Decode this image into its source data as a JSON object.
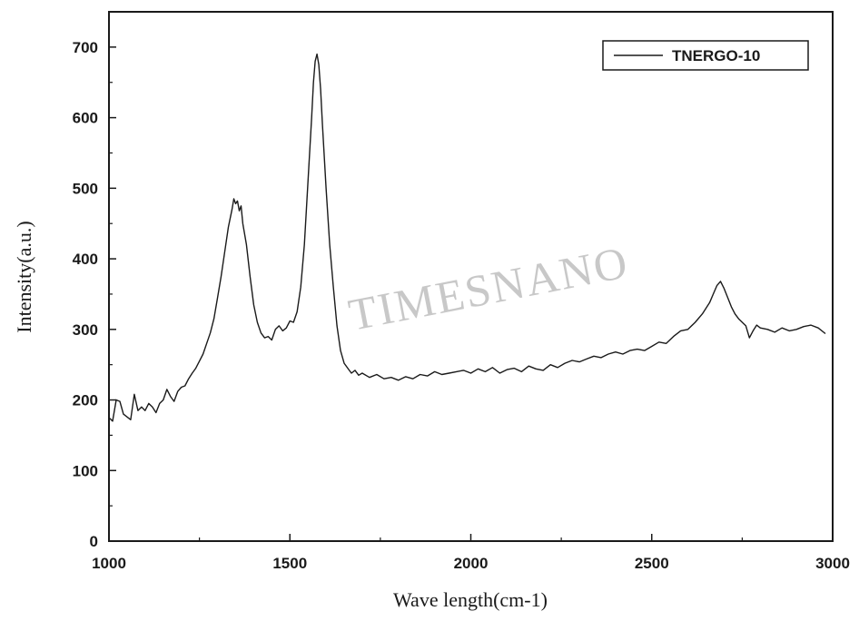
{
  "chart_data": {
    "type": "line",
    "title": "",
    "xlabel": "Wave length(cm-1)",
    "ylabel": "Intensity(a.u.)",
    "xlim": [
      1000,
      3000
    ],
    "ylim": [
      0,
      750
    ],
    "x_ticks": [
      1000,
      1500,
      2000,
      2500,
      3000
    ],
    "y_ticks": [
      0,
      100,
      200,
      300,
      400,
      500,
      600,
      700
    ],
    "grid": false,
    "legend": {
      "position": "top-right",
      "entries": [
        "TNERGO-10"
      ]
    },
    "watermark": "TIMESNANO",
    "series": [
      {
        "name": "TNERGO-10",
        "color": "#1a1a1a",
        "points": [
          [
            1000,
            175
          ],
          [
            1010,
            170
          ],
          [
            1020,
            200
          ],
          [
            1030,
            198
          ],
          [
            1040,
            180
          ],
          [
            1050,
            176
          ],
          [
            1060,
            172
          ],
          [
            1070,
            208
          ],
          [
            1080,
            185
          ],
          [
            1090,
            190
          ],
          [
            1100,
            185
          ],
          [
            1110,
            195
          ],
          [
            1120,
            190
          ],
          [
            1130,
            182
          ],
          [
            1140,
            195
          ],
          [
            1150,
            200
          ],
          [
            1160,
            215
          ],
          [
            1170,
            205
          ],
          [
            1180,
            198
          ],
          [
            1190,
            212
          ],
          [
            1200,
            218
          ],
          [
            1210,
            220
          ],
          [
            1220,
            230
          ],
          [
            1230,
            238
          ],
          [
            1240,
            245
          ],
          [
            1250,
            255
          ],
          [
            1260,
            265
          ],
          [
            1270,
            280
          ],
          [
            1280,
            295
          ],
          [
            1290,
            315
          ],
          [
            1300,
            345
          ],
          [
            1310,
            375
          ],
          [
            1320,
            410
          ],
          [
            1330,
            445
          ],
          [
            1340,
            470
          ],
          [
            1345,
            485
          ],
          [
            1350,
            478
          ],
          [
            1355,
            482
          ],
          [
            1360,
            468
          ],
          [
            1365,
            475
          ],
          [
            1370,
            450
          ],
          [
            1380,
            420
          ],
          [
            1390,
            375
          ],
          [
            1400,
            335
          ],
          [
            1410,
            310
          ],
          [
            1420,
            295
          ],
          [
            1430,
            288
          ],
          [
            1440,
            290
          ],
          [
            1450,
            285
          ],
          [
            1460,
            300
          ],
          [
            1470,
            305
          ],
          [
            1480,
            298
          ],
          [
            1490,
            302
          ],
          [
            1500,
            312
          ],
          [
            1510,
            310
          ],
          [
            1520,
            325
          ],
          [
            1530,
            360
          ],
          [
            1540,
            420
          ],
          [
            1550,
            510
          ],
          [
            1560,
            600
          ],
          [
            1565,
            650
          ],
          [
            1570,
            680
          ],
          [
            1575,
            690
          ],
          [
            1580,
            675
          ],
          [
            1585,
            640
          ],
          [
            1590,
            590
          ],
          [
            1600,
            500
          ],
          [
            1610,
            420
          ],
          [
            1620,
            360
          ],
          [
            1630,
            305
          ],
          [
            1640,
            270
          ],
          [
            1650,
            252
          ],
          [
            1660,
            245
          ],
          [
            1670,
            238
          ],
          [
            1680,
            242
          ],
          [
            1690,
            235
          ],
          [
            1700,
            238
          ],
          [
            1720,
            232
          ],
          [
            1740,
            236
          ],
          [
            1760,
            230
          ],
          [
            1780,
            232
          ],
          [
            1800,
            228
          ],
          [
            1820,
            233
          ],
          [
            1840,
            230
          ],
          [
            1860,
            236
          ],
          [
            1880,
            234
          ],
          [
            1900,
            240
          ],
          [
            1920,
            236
          ],
          [
            1940,
            238
          ],
          [
            1960,
            240
          ],
          [
            1980,
            242
          ],
          [
            2000,
            238
          ],
          [
            2020,
            244
          ],
          [
            2040,
            240
          ],
          [
            2060,
            246
          ],
          [
            2080,
            238
          ],
          [
            2100,
            243
          ],
          [
            2120,
            245
          ],
          [
            2140,
            240
          ],
          [
            2160,
            248
          ],
          [
            2180,
            244
          ],
          [
            2200,
            242
          ],
          [
            2220,
            250
          ],
          [
            2240,
            246
          ],
          [
            2260,
            252
          ],
          [
            2280,
            256
          ],
          [
            2300,
            254
          ],
          [
            2320,
            258
          ],
          [
            2340,
            262
          ],
          [
            2360,
            260
          ],
          [
            2380,
            265
          ],
          [
            2400,
            268
          ],
          [
            2420,
            265
          ],
          [
            2440,
            270
          ],
          [
            2460,
            272
          ],
          [
            2480,
            270
          ],
          [
            2500,
            276
          ],
          [
            2520,
            282
          ],
          [
            2540,
            280
          ],
          [
            2560,
            290
          ],
          [
            2580,
            298
          ],
          [
            2600,
            300
          ],
          [
            2620,
            310
          ],
          [
            2640,
            322
          ],
          [
            2660,
            338
          ],
          [
            2670,
            350
          ],
          [
            2680,
            362
          ],
          [
            2690,
            368
          ],
          [
            2700,
            358
          ],
          [
            2710,
            345
          ],
          [
            2720,
            332
          ],
          [
            2730,
            322
          ],
          [
            2740,
            315
          ],
          [
            2750,
            310
          ],
          [
            2760,
            305
          ],
          [
            2770,
            288
          ],
          [
            2780,
            298
          ],
          [
            2790,
            306
          ],
          [
            2800,
            302
          ],
          [
            2820,
            300
          ],
          [
            2840,
            296
          ],
          [
            2860,
            302
          ],
          [
            2880,
            298
          ],
          [
            2900,
            300
          ],
          [
            2920,
            304
          ],
          [
            2940,
            306
          ],
          [
            2960,
            302
          ],
          [
            2980,
            294
          ]
        ]
      }
    ]
  }
}
